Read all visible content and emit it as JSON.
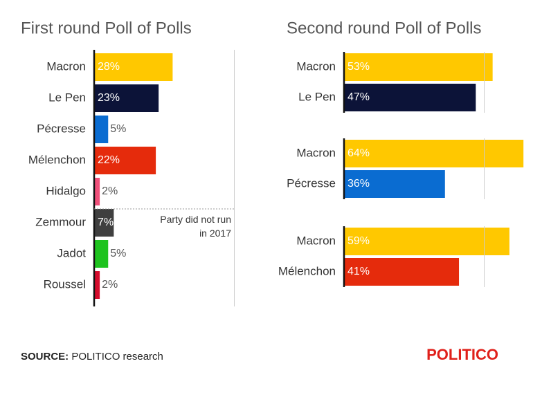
{
  "chart_data": [
    {
      "type": "bar",
      "orientation": "horizontal",
      "title": "First round Poll of Polls",
      "categories": [
        "Macron",
        "Le Pen",
        "Pécresse",
        "Mélenchon",
        "Hidalgo",
        "Zemmour",
        "Jadot",
        "Roussel"
      ],
      "values": [
        28,
        23,
        5,
        22,
        2,
        7,
        5,
        2
      ],
      "value_labels": [
        "28%",
        "23%",
        "5%",
        "22%",
        "2%",
        "7%",
        "5%",
        "2%"
      ],
      "colors": [
        "#ffc800",
        "#0c1338",
        "#0a6cd1",
        "#e52b0c",
        "#f0507a",
        "#3f3f3f",
        "#1ec31e",
        "#d40c2c"
      ],
      "xlim": [
        0,
        100
      ],
      "xticks": [
        50
      ],
      "grid": true,
      "annotation": "Party did not run in 2017"
    },
    {
      "type": "grouped-bar",
      "orientation": "horizontal",
      "title": "Second round Poll of Polls",
      "groups": [
        {
          "categories": [
            "Macron",
            "Le Pen"
          ],
          "values": [
            53,
            47
          ],
          "value_labels": [
            "53%",
            "47%"
          ],
          "colors": [
            "#ffc800",
            "#0c1338"
          ]
        },
        {
          "categories": [
            "Macron",
            "Pécresse"
          ],
          "values": [
            64,
            36
          ],
          "value_labels": [
            "64%",
            "36%"
          ],
          "colors": [
            "#ffc800",
            "#0a6cd1"
          ]
        },
        {
          "categories": [
            "Macron",
            "Mélenchon"
          ],
          "values": [
            59,
            41
          ],
          "value_labels": [
            "59%",
            "41%"
          ],
          "colors": [
            "#ffc800",
            "#e52b0c"
          ]
        }
      ],
      "xlim": [
        0,
        100
      ],
      "xticks": [
        50
      ],
      "grid": true
    }
  ],
  "footer": {
    "source_label": "SOURCE:",
    "source": "POLITICO research",
    "logo": "POLITICO"
  }
}
